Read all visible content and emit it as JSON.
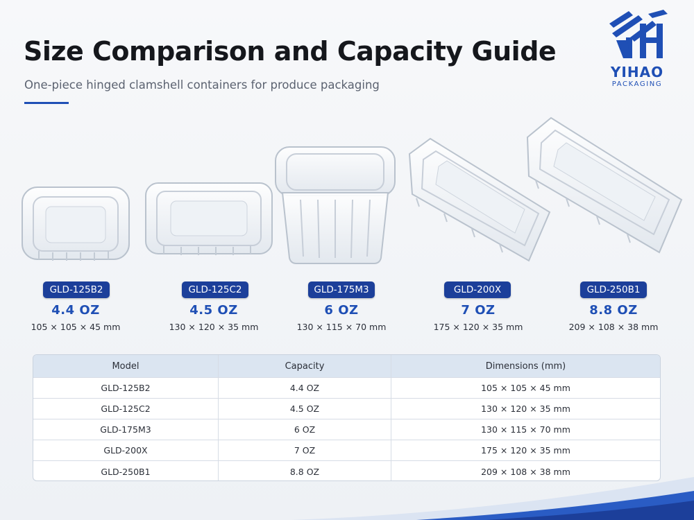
{
  "header": {
    "title": "Size Comparison and Capacity Guide",
    "subtitle": "One-piece hinged clamshell containers for produce packaging"
  },
  "brand": {
    "name": "YIHAO",
    "tagline": "PACKAGING",
    "color": "#1f4fb5"
  },
  "products": [
    {
      "model": "GLD-125B2",
      "capacity": "4.4 OZ",
      "dimensions": "105 × 105 × 45 mm"
    },
    {
      "model": "GLD-125C2",
      "capacity": "4.5 OZ",
      "dimensions": "130 × 120 × 35 mm"
    },
    {
      "model": "GLD-175M3",
      "capacity": "6 OZ",
      "dimensions": "130 × 115 × 70 mm"
    },
    {
      "model": "GLD-200X",
      "capacity": "7 OZ",
      "dimensions": "175 × 120 × 35 mm"
    },
    {
      "model": "GLD-250B1",
      "capacity": "8.8 OZ",
      "dimensions": "209 × 108 × 38 mm"
    }
  ],
  "table": {
    "headers": [
      "Model",
      "Capacity",
      "Dimensions (mm)"
    ],
    "rows": [
      [
        "GLD-125B2",
        "4.4 OZ",
        "105 × 105 × 45 mm"
      ],
      [
        "GLD-125C2",
        "4.5 OZ",
        "130 × 120 × 35 mm"
      ],
      [
        "GLD-175M3",
        "6 OZ",
        "130 × 115 × 70 mm"
      ],
      [
        "GLD-200X",
        "7 OZ",
        "175 × 120 × 35 mm"
      ],
      [
        "GLD-250B1",
        "8.8 OZ",
        "209 × 108 × 38 mm"
      ]
    ]
  },
  "colors": {
    "badge": "#1c3f9a",
    "accent": "#1f4fb5",
    "table_header": "#dbe5f1"
  },
  "icons": {
    "logo": "yihao-logo-icon",
    "product_image": "clear-clamshell-container-icon"
  }
}
